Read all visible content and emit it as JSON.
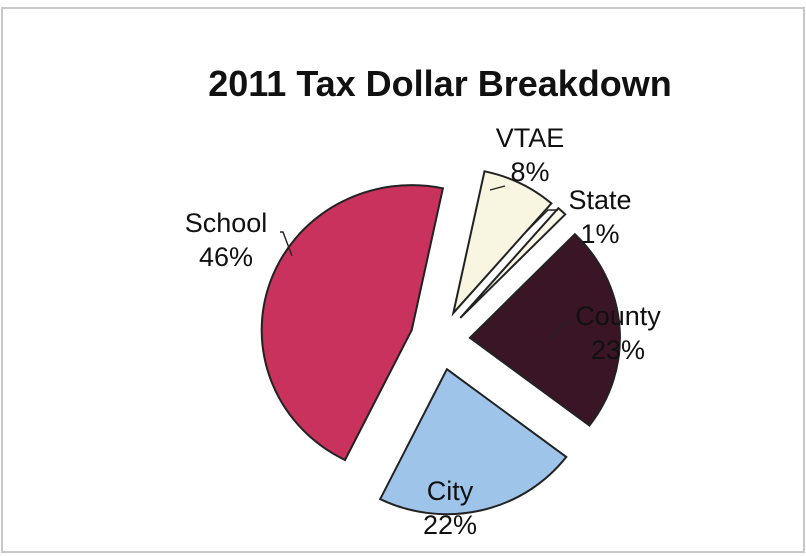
{
  "chart_data": {
    "type": "pie",
    "title": "2011 Tax Dollar Breakdown",
    "slices": [
      {
        "label": "VTAE",
        "value": 8,
        "percent_label": "8%",
        "color": "#f8f6e1"
      },
      {
        "label": "State",
        "value": 1,
        "percent_label": "1%",
        "color": "#fbfae8"
      },
      {
        "label": "County",
        "value": 23,
        "percent_label": "23%",
        "color": "#3a1526"
      },
      {
        "label": "City",
        "value": 22,
        "percent_label": "22%",
        "color": "#9ec4ea"
      },
      {
        "label": "School",
        "value": 46,
        "percent_label": "46%",
        "color": "#c8325d"
      }
    ],
    "exploded": true,
    "perspective": "tilted",
    "legend": "none"
  }
}
